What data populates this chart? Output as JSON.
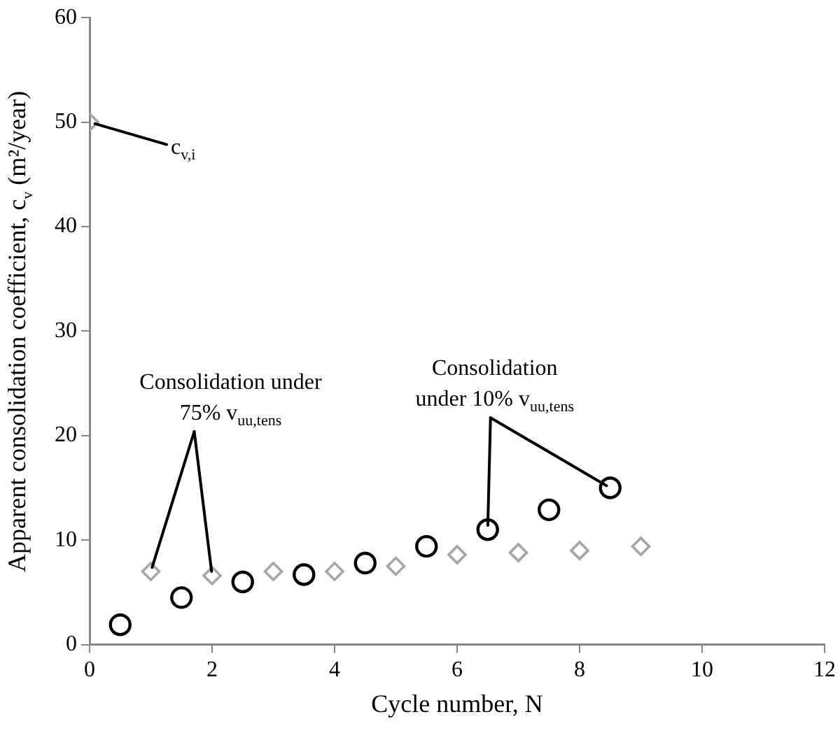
{
  "chart_data": {
    "type": "scatter",
    "xlabel": "Cycle number, N",
    "ylabel": "Apparent consolidation coefficient, c$_{v}$ (m²/year)",
    "series": [
      {
        "color": "#000000",
        "marker": "circle",
        "x": [
          0.5,
          1.5,
          2.5,
          3.5,
          4.5,
          5.5,
          6.5,
          7.5,
          8.5
        ],
        "values": [
          1.9,
          4.5,
          6.0,
          6.7,
          7.8,
          9.4,
          11.0,
          12.9,
          15.0
        ]
      },
      {
        "color": "#a6a6a6",
        "marker": "diamond",
        "x": [
          0,
          1,
          2,
          3,
          4,
          5,
          6,
          7,
          8,
          9
        ],
        "values": [
          50,
          7.0,
          6.6,
          7.0,
          7.0,
          7.5,
          8.6,
          8.8,
          9.0,
          9.4
        ]
      }
    ],
    "xlim": [
      0,
      12
    ],
    "xticks": [
      0,
      2,
      4,
      6,
      8,
      10,
      12
    ],
    "ylim": [
      0,
      60
    ],
    "yticks": [
      0,
      10,
      20,
      30,
      40,
      50,
      60
    ],
    "annotations": [
      {
        "text": "c$_{v,i}$",
        "x": 0,
        "y": 50
      },
      {
        "text": "Consolidation under\n75% v$_{uu,tens}$",
        "x": 1,
        "y": 7.0
      },
      {
        "text": "Consolidation\nunder 10% v$_{uu,tens}$",
        "x": 6.5,
        "y": 11.0
      }
    ],
    "grid": false,
    "legend": false
  }
}
